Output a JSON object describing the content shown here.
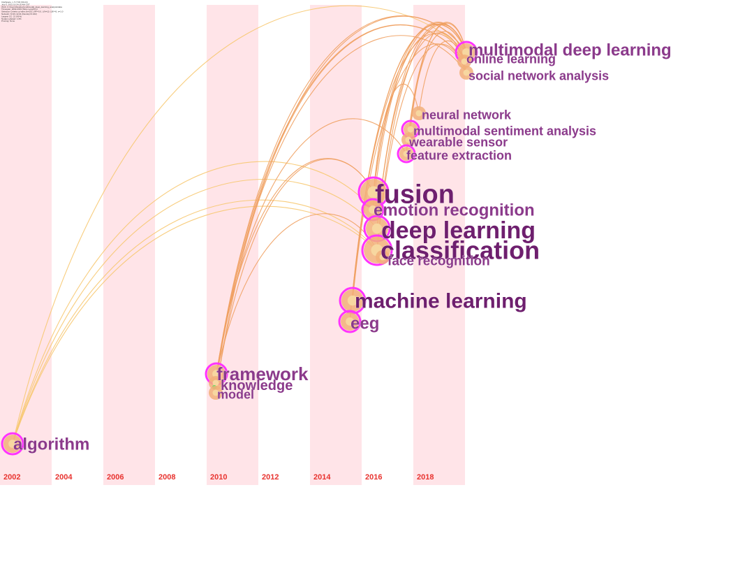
{
  "meta_lines": [
    "CiteSpace, v. 5.7.R2 (64-bit)",
    "July 5, 2021 10:24:15 AM CST",
    "WoS: C:\\Users\\Desktop\\multimodal_deep_learning_analysis\\data",
    "Timespan: 2002-2019 (Slice Length=1)",
    "Selection Criteria: g-index (k=25), LRF=3.0, L/N=10, LBY=5, e=1.0",
    "Network: N=23, E=41 (Density=0.162)",
    "Largest CC: 21 (91%)",
    "Nodes Labeled: 1.0%",
    "Pruning: None"
  ],
  "colors": {
    "band": "#ffe4e8",
    "year_label": "#e8322e",
    "keyword": "#8b3a8b",
    "keyword_strong": "#6e1f6e",
    "link_orange": "#f0a060",
    "link_yellow": "#f7c870",
    "node_ring": "#ff33ff",
    "node_core": "#f2b07a"
  },
  "chart_data": {
    "type": "timeline",
    "years": [
      "2002",
      "2004",
      "2006",
      "2008",
      "2010",
      "2012",
      "2014",
      "2016",
      "2018"
    ],
    "keywords": [
      {
        "label": "multimodal deep learning",
        "year": 2019,
        "weight": 3
      },
      {
        "label": "online learning",
        "year": 2019,
        "weight": 2
      },
      {
        "label": "social network analysis",
        "year": 2019,
        "weight": 2
      },
      {
        "label": "neural network",
        "year": 2018,
        "weight": 2
      },
      {
        "label": "multimodal sentiment analysis",
        "year": 2018,
        "weight": 2
      },
      {
        "label": "wearable sensor",
        "year": 2018,
        "weight": 2
      },
      {
        "label": "feature extraction",
        "year": 2018,
        "weight": 2
      },
      {
        "label": "fusion",
        "year": 2017,
        "weight": 5
      },
      {
        "label": "emotion recognition",
        "year": 2017,
        "weight": 3
      },
      {
        "label": "deep learning",
        "year": 2017,
        "weight": 4
      },
      {
        "label": "classification",
        "year": 2017,
        "weight": 5
      },
      {
        "label": "face recognition",
        "year": 2017,
        "weight": 2
      },
      {
        "label": "machine learning",
        "year": 2016,
        "weight": 4
      },
      {
        "label": "eeg",
        "year": 2015,
        "weight": 3
      },
      {
        "label": "framework",
        "year": 2010,
        "weight": 3
      },
      {
        "label": "knowledge",
        "year": 2010,
        "weight": 2
      },
      {
        "label": "model",
        "year": 2010,
        "weight": 2
      },
      {
        "label": "algorithm",
        "year": 2002,
        "weight": 3
      }
    ],
    "links": [
      [
        "algorithm",
        "multimodal deep learning"
      ],
      [
        "algorithm",
        "emotion recognition"
      ],
      [
        "algorithm",
        "deep learning"
      ],
      [
        "algorithm",
        "classification"
      ],
      [
        "algorithm",
        "face recognition"
      ],
      [
        "framework",
        "multimodal deep learning"
      ],
      [
        "framework",
        "online learning"
      ],
      [
        "framework",
        "social network analysis"
      ],
      [
        "framework",
        "fusion"
      ],
      [
        "framework",
        "feature extraction"
      ],
      [
        "framework",
        "classification"
      ],
      [
        "knowledge",
        "online learning"
      ],
      [
        "model",
        "multimodal deep learning"
      ],
      [
        "model",
        "fusion"
      ],
      [
        "eeg",
        "multimodal deep learning"
      ],
      [
        "eeg",
        "online learning"
      ],
      [
        "machine learning",
        "multimodal deep learning"
      ],
      [
        "machine learning",
        "social network analysis"
      ],
      [
        "fusion",
        "multimodal deep learning"
      ],
      [
        "fusion",
        "online learning"
      ],
      [
        "fusion",
        "neural network"
      ],
      [
        "classification",
        "multimodal deep learning"
      ],
      [
        "classification",
        "social network analysis"
      ],
      [
        "deep learning",
        "multimodal deep learning"
      ],
      [
        "deep learning",
        "online learning"
      ],
      [
        "emotion recognition",
        "multimodal deep learning"
      ],
      [
        "feature extraction",
        "multimodal deep learning"
      ],
      [
        "wearable sensor",
        "online learning"
      ],
      [
        "multimodal sentiment analysis",
        "multimodal deep learning"
      ],
      [
        "neural network",
        "social network analysis"
      ]
    ]
  }
}
